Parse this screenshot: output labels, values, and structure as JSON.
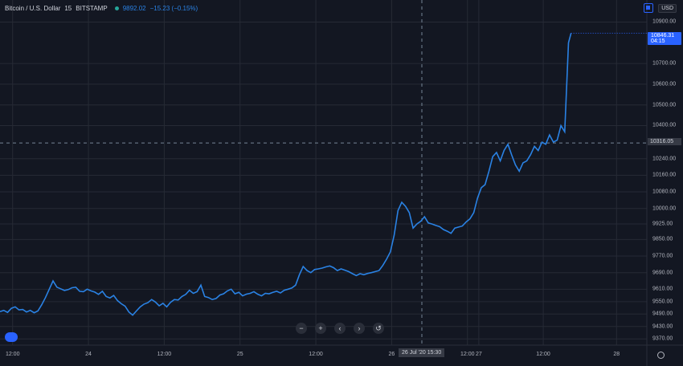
{
  "legend": {
    "symbol": "Bitcoin / U.S. Dollar",
    "interval": "15",
    "exchange": "BITSTAMP",
    "price": "9892.02",
    "change": "−15.23 (−0.15%)"
  },
  "currency": "USD",
  "last_price": {
    "value": "10846.31",
    "countdown": "04:15"
  },
  "crosshair": {
    "price": "10316.05",
    "time": "26 Jul '20  15:30"
  },
  "toolbar": {
    "zoom_out": "−",
    "zoom_in": "+",
    "scroll_left": "‹",
    "scroll_right": "›",
    "reset": "↺"
  },
  "chart_data": {
    "type": "line",
    "series": [
      {
        "color": "#2a82e4",
        "points": [
          [
            0,
            9502
          ],
          [
            0.15,
            9508
          ],
          [
            0.3,
            9498
          ],
          [
            0.45,
            9518
          ],
          [
            0.6,
            9525
          ],
          [
            0.75,
            9510
          ],
          [
            0.9,
            9512
          ],
          [
            1.05,
            9500
          ],
          [
            1.2,
            9508
          ],
          [
            1.35,
            9496
          ],
          [
            1.5,
            9505
          ],
          [
            1.65,
            9535
          ],
          [
            1.8,
            9570
          ],
          [
            1.95,
            9610
          ],
          [
            2.1,
            9650
          ],
          [
            2.25,
            9620
          ],
          [
            2.4,
            9612
          ],
          [
            2.55,
            9604
          ],
          [
            2.7,
            9608
          ],
          [
            2.85,
            9617
          ],
          [
            3.0,
            9620
          ],
          [
            3.15,
            9600
          ],
          [
            3.3,
            9598
          ],
          [
            3.45,
            9610
          ],
          [
            3.6,
            9602
          ],
          [
            3.75,
            9596
          ],
          [
            3.9,
            9585
          ],
          [
            4.05,
            9600
          ],
          [
            4.2,
            9575
          ],
          [
            4.35,
            9568
          ],
          [
            4.5,
            9580
          ],
          [
            4.65,
            9555
          ],
          [
            4.8,
            9540
          ],
          [
            4.95,
            9528
          ],
          [
            5.1,
            9500
          ],
          [
            5.25,
            9485
          ],
          [
            5.4,
            9505
          ],
          [
            5.55,
            9525
          ],
          [
            5.7,
            9538
          ],
          [
            5.85,
            9545
          ],
          [
            6.0,
            9560
          ],
          [
            6.15,
            9548
          ],
          [
            6.3,
            9530
          ],
          [
            6.45,
            9542
          ],
          [
            6.6,
            9525
          ],
          [
            6.75,
            9547
          ],
          [
            6.9,
            9560
          ],
          [
            7.05,
            9558
          ],
          [
            7.2,
            9575
          ],
          [
            7.35,
            9585
          ],
          [
            7.5,
            9605
          ],
          [
            7.65,
            9590
          ],
          [
            7.8,
            9598
          ],
          [
            7.95,
            9630
          ],
          [
            8.1,
            9575
          ],
          [
            8.25,
            9570
          ],
          [
            8.4,
            9560
          ],
          [
            8.55,
            9565
          ],
          [
            8.7,
            9582
          ],
          [
            8.85,
            9588
          ],
          [
            9.0,
            9602
          ],
          [
            9.15,
            9610
          ],
          [
            9.3,
            9588
          ],
          [
            9.45,
            9595
          ],
          [
            9.6,
            9578
          ],
          [
            9.75,
            9586
          ],
          [
            9.9,
            9590
          ],
          [
            10.05,
            9598
          ],
          [
            10.2,
            9586
          ],
          [
            10.35,
            9578
          ],
          [
            10.5,
            9590
          ],
          [
            10.65,
            9588
          ],
          [
            10.8,
            9595
          ],
          [
            10.95,
            9600
          ],
          [
            11.1,
            9592
          ],
          [
            11.25,
            9605
          ],
          [
            11.4,
            9610
          ],
          [
            11.55,
            9616
          ],
          [
            11.7,
            9630
          ],
          [
            11.85,
            9680
          ],
          [
            12.0,
            9720
          ],
          [
            12.15,
            9700
          ],
          [
            12.3,
            9690
          ],
          [
            12.45,
            9705
          ],
          [
            12.6,
            9708
          ],
          [
            12.75,
            9712
          ],
          [
            12.9,
            9718
          ],
          [
            13.05,
            9722
          ],
          [
            13.2,
            9714
          ],
          [
            13.35,
            9700
          ],
          [
            13.5,
            9708
          ],
          [
            13.65,
            9702
          ],
          [
            13.8,
            9695
          ],
          [
            13.95,
            9685
          ],
          [
            14.1,
            9676
          ],
          [
            14.25,
            9685
          ],
          [
            14.4,
            9680
          ],
          [
            14.55,
            9686
          ],
          [
            14.7,
            9690
          ],
          [
            14.85,
            9695
          ],
          [
            15.0,
            9700
          ],
          [
            15.15,
            9725
          ],
          [
            15.3,
            9755
          ],
          [
            15.45,
            9790
          ],
          [
            15.6,
            9870
          ],
          [
            15.75,
            9990
          ],
          [
            15.9,
            10030
          ],
          [
            16.05,
            10010
          ],
          [
            16.2,
            9980
          ],
          [
            16.35,
            9905
          ],
          [
            16.5,
            9925
          ],
          [
            16.65,
            9938
          ],
          [
            16.8,
            9960
          ],
          [
            16.95,
            9930
          ],
          [
            17.1,
            9925
          ],
          [
            17.25,
            9918
          ],
          [
            17.4,
            9912
          ],
          [
            17.55,
            9898
          ],
          [
            17.7,
            9890
          ],
          [
            17.85,
            9880
          ],
          [
            18.0,
            9905
          ],
          [
            18.15,
            9910
          ],
          [
            18.3,
            9915
          ],
          [
            18.45,
            9935
          ],
          [
            18.6,
            9950
          ],
          [
            18.75,
            9980
          ],
          [
            18.9,
            10050
          ],
          [
            19.05,
            10100
          ],
          [
            19.2,
            10115
          ],
          [
            19.35,
            10180
          ],
          [
            19.5,
            10250
          ],
          [
            19.65,
            10270
          ],
          [
            19.8,
            10230
          ],
          [
            19.95,
            10280
          ],
          [
            20.1,
            10310
          ],
          [
            20.25,
            10258
          ],
          [
            20.4,
            10210
          ],
          [
            20.55,
            10180
          ],
          [
            20.7,
            10220
          ],
          [
            20.85,
            10230
          ],
          [
            21.0,
            10260
          ],
          [
            21.15,
            10300
          ],
          [
            21.3,
            10280
          ],
          [
            21.45,
            10320
          ],
          [
            21.6,
            10310
          ],
          [
            21.75,
            10355
          ],
          [
            21.9,
            10320
          ],
          [
            22.05,
            10330
          ],
          [
            22.2,
            10400
          ],
          [
            22.35,
            10370
          ],
          [
            22.5,
            10800
          ],
          [
            22.6,
            10846.31
          ]
        ]
      }
    ],
    "x_ticks": [
      {
        "label": "12:00",
        "x": 0.5
      },
      {
        "label": "24",
        "x": 3.5
      },
      {
        "label": "12:00",
        "x": 6.5
      },
      {
        "label": "25",
        "x": 9.5
      },
      {
        "label": "12:00",
        "x": 12.5
      },
      {
        "label": "26",
        "x": 15.5
      },
      {
        "label": "12:00",
        "x": 18.5
      },
      {
        "label": "27",
        "x": 18.95
      },
      {
        "label": "12:00",
        "x": 21.5
      },
      {
        "label": "28",
        "x": 24.4
      }
    ],
    "y_ticks": [
      "10900.00",
      "10700.00",
      "10600.00",
      "10500.00",
      "10400.00",
      "10240.00",
      "10160.00",
      "10080.00",
      "10000.00",
      "9925.00",
      "9850.00",
      "9770.00",
      "9690.00",
      "9610.00",
      "9550.00",
      "9490.00",
      "9430.00",
      "9370.00"
    ],
    "grid": true,
    "xlim": [
      0,
      25.6
    ],
    "ylim": [
      9340,
      10960
    ]
  }
}
